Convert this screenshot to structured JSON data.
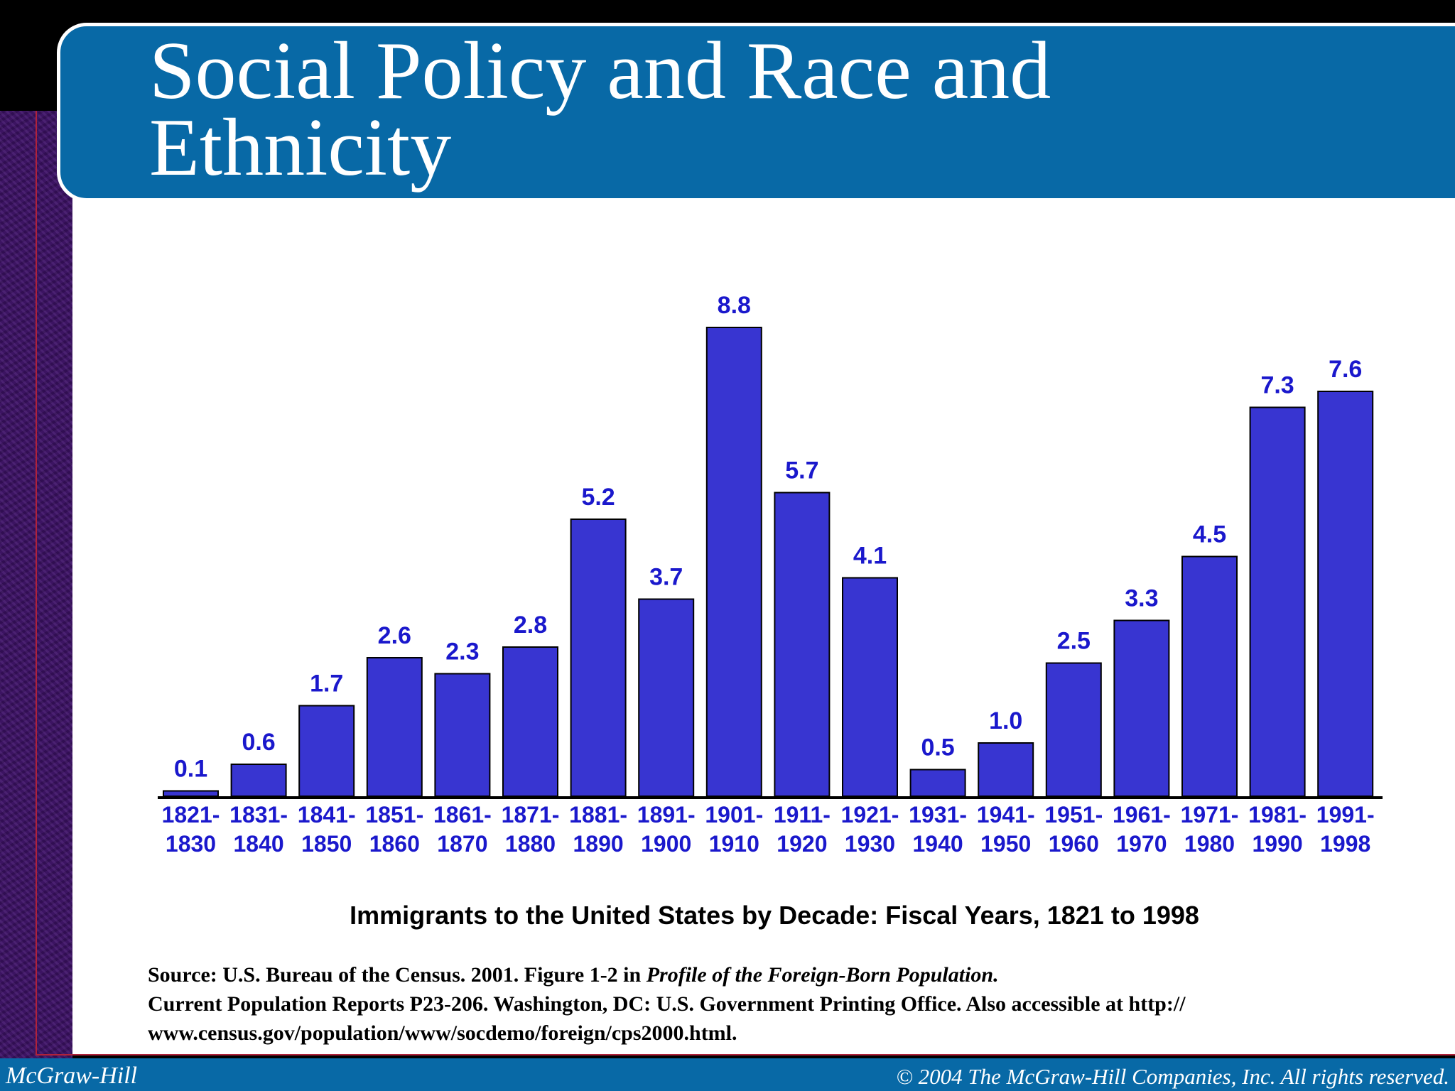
{
  "slide": {
    "title": "Social Policy and Race and\nEthnicity"
  },
  "chart_data": {
    "type": "bar",
    "title": "Immigrants to the United States by Decade: Fiscal Years, 1821 to 1998",
    "xlabel": "",
    "ylabel": "",
    "ylim": [
      0,
      8.8
    ],
    "categories": [
      [
        "1821-",
        "1830"
      ],
      [
        "1831-",
        "1840"
      ],
      [
        "1841-",
        "1850"
      ],
      [
        "1851-",
        "1860"
      ],
      [
        "1861-",
        "1870"
      ],
      [
        "1871-",
        "1880"
      ],
      [
        "1881-",
        "1890"
      ],
      [
        "1891-",
        "1900"
      ],
      [
        "1901-",
        "1910"
      ],
      [
        "1911-",
        "1920"
      ],
      [
        "1921-",
        "1930"
      ],
      [
        "1931-",
        "1940"
      ],
      [
        "1941-",
        "1950"
      ],
      [
        "1951-",
        "1960"
      ],
      [
        "1961-",
        "1970"
      ],
      [
        "1971-",
        "1980"
      ],
      [
        "1981-",
        "1990"
      ],
      [
        "1991-",
        "1998"
      ]
    ],
    "values": [
      0.1,
      0.6,
      1.7,
      2.6,
      2.3,
      2.8,
      5.2,
      3.7,
      8.8,
      5.7,
      4.1,
      0.5,
      1.0,
      2.5,
      3.3,
      4.5,
      7.3,
      7.6
    ],
    "value_labels": [
      "0.1",
      "0.6",
      "1.7",
      "2.6",
      "2.3",
      "2.8",
      "5.2",
      "3.7",
      "8.8",
      "5.7",
      "4.1",
      "0.5",
      "1.0",
      "2.5",
      "3.3",
      "4.5",
      "7.3",
      "7.6"
    ],
    "bar_color": "#3835d1",
    "label_color": "#1a18cc",
    "grid": false,
    "legend": "none"
  },
  "source": {
    "line1_prefix": "Source: U.S. Bureau of the Census. 2001. Figure 1-2 in ",
    "line1_italic": "Profile of the Foreign-Born Population.",
    "line2": "Current Population Reports P23-206. Washington, DC: U.S. Government Printing Office. Also accessible at http://",
    "line3": "www.census.gov/population/www/socdemo/foreign/cps2000.html."
  },
  "footer": {
    "publisher": "McGraw-Hill",
    "copyright": "© 2004 The McGraw-Hill Companies, Inc. All rights reserved."
  },
  "colors": {
    "banner": "#0869a6",
    "side_strip": "#3b1163"
  }
}
